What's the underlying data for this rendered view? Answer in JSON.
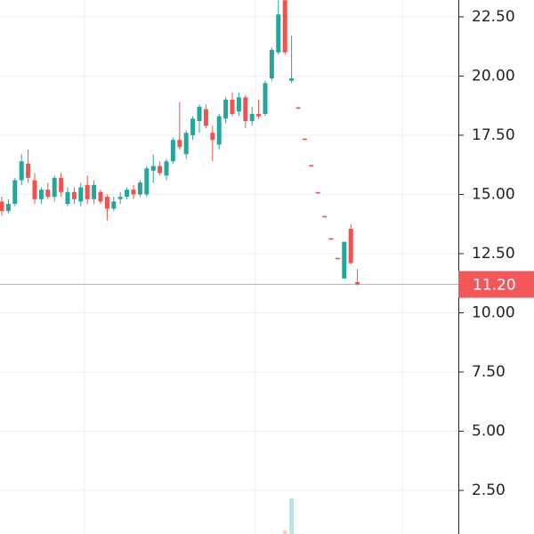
{
  "chart_data": {
    "type": "candlestick",
    "up_color": "#26a69a",
    "down_color": "#ef5350",
    "ylim": [
      0.66,
      23.21
    ],
    "yticks": [
      {
        "value": 2.5,
        "label": "2.50"
      },
      {
        "value": 5,
        "label": "5.00"
      },
      {
        "value": 7.5,
        "label": "7.50"
      },
      {
        "value": 10,
        "label": "10.00"
      },
      {
        "value": 12.5,
        "label": "12.50"
      },
      {
        "value": 15,
        "label": "15.00"
      },
      {
        "value": 17.5,
        "label": "17.50"
      },
      {
        "value": 20,
        "label": "20.00"
      },
      {
        "value": 22.5,
        "label": "22.50"
      }
    ],
    "grid": true,
    "last_price": {
      "value": 11.2,
      "label": "11.20",
      "color": "#f4575a"
    },
    "open": [
      14.7,
      14.3,
      14.6,
      15.6,
      16.3,
      15.6,
      14.8,
      15.2,
      14.9,
      15.7,
      14.6,
      15.1,
      14.7,
      15.4,
      14.8,
      15.1,
      14.9,
      14.4,
      14.8,
      14.9,
      15.2,
      15.0,
      15.0,
      16.0,
      16.2,
      15.8,
      16.4,
      17.3,
      16.7,
      17.5,
      18.1,
      18.6,
      17.6,
      17.1,
      18.2,
      19.0,
      18.5,
      19.1,
      18.1,
      18.4,
      18.4,
      19.9,
      21.0,
      23.2,
      19.8,
      18.68,
      17.36,
      16.24,
      15.1,
      14.09,
      13.15,
      12.32,
      11.45,
      13.55,
      11.3
    ],
    "high": [
      14.9,
      14.8,
      15.7,
      16.7,
      16.9,
      15.9,
      15.3,
      15.5,
      15.8,
      15.9,
      15.3,
      15.3,
      15.5,
      15.8,
      15.6,
      15.2,
      15.0,
      14.9,
      15.1,
      15.3,
      15.4,
      15.6,
      16.2,
      16.7,
      16.4,
      16.5,
      17.4,
      18.9,
      17.7,
      18.3,
      18.8,
      18.8,
      17.9,
      18.4,
      19.1,
      19.3,
      19.3,
      19.2,
      18.7,
      19.0,
      19.8,
      21.2,
      23.2,
      23.2,
      21.7,
      18.68,
      17.36,
      16.24,
      15.1,
      14.09,
      13.15,
      12.32,
      13.0,
      13.75,
      11.85
    ],
    "low": [
      14.1,
      14.2,
      14.5,
      15.4,
      15.5,
      14.6,
      14.6,
      14.8,
      14.7,
      14.9,
      14.5,
      14.6,
      14.5,
      14.6,
      14.6,
      14.6,
      13.9,
      14.3,
      14.6,
      14.8,
      14.8,
      14.9,
      14.9,
      15.5,
      15.8,
      15.6,
      16.3,
      16.9,
      16.5,
      17.3,
      17.6,
      17.8,
      16.4,
      16.9,
      18.0,
      18.3,
      18.3,
      17.8,
      17.9,
      18.2,
      18.3,
      19.8,
      20.9,
      20.9,
      19.7,
      18.62,
      17.3,
      16.18,
      15.04,
      14.03,
      13.09,
      12.26,
      11.45,
      12.05,
      11.15
    ],
    "close": [
      14.3,
      14.6,
      15.6,
      16.4,
      15.7,
      14.8,
      15.2,
      14.9,
      15.7,
      15.1,
      15.1,
      14.8,
      15.3,
      14.8,
      15.4,
      14.7,
      14.4,
      14.7,
      14.9,
      15.2,
      15.0,
      15.5,
      16.1,
      16.2,
      15.9,
      16.4,
      17.3,
      17.0,
      17.6,
      18.2,
      18.7,
      17.9,
      17.3,
      18.3,
      19.0,
      18.4,
      19.1,
      18.1,
      18.4,
      18.3,
      19.7,
      21.1,
      22.6,
      21.0,
      19.9,
      18.62,
      17.3,
      16.18,
      15.04,
      14.03,
      13.09,
      12.26,
      13.0,
      12.1,
      11.2
    ],
    "volume_lim": [
      0,
      2.5
    ],
    "volume": [
      null,
      null,
      null,
      null,
      null,
      null,
      null,
      null,
      null,
      null,
      null,
      null,
      null,
      null,
      null,
      null,
      null,
      null,
      null,
      null,
      null,
      null,
      null,
      null,
      null,
      null,
      null,
      null,
      null,
      null,
      null,
      null,
      null,
      null,
      null,
      null,
      null,
      null,
      null,
      null,
      null,
      null,
      null,
      0.1,
      1,
      null,
      null,
      null,
      null,
      null,
      null,
      null,
      null,
      null,
      null
    ]
  }
}
